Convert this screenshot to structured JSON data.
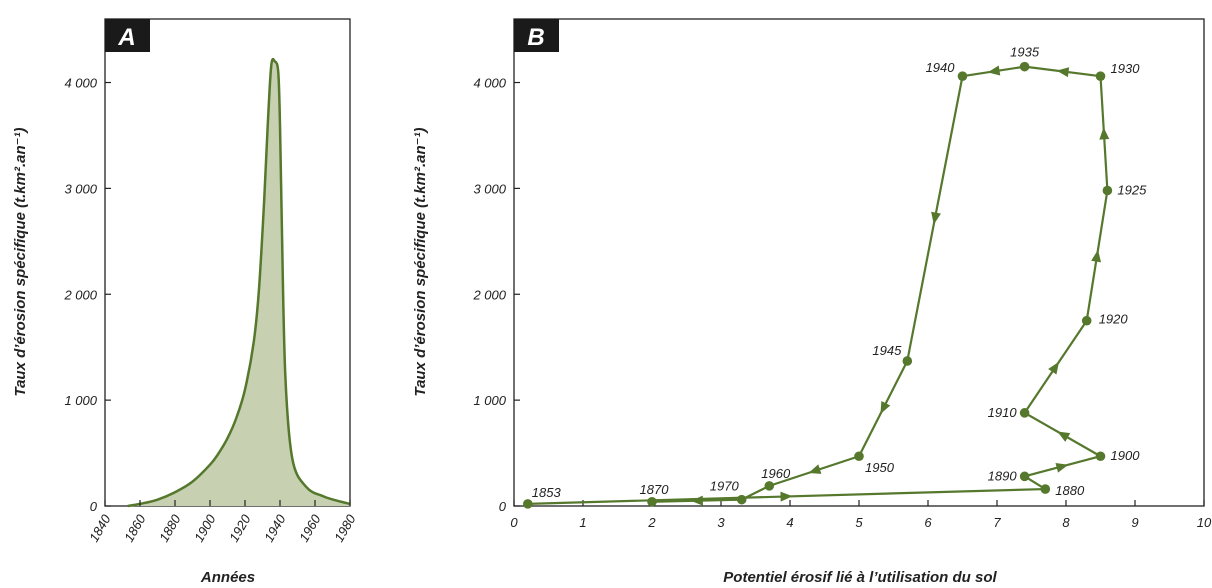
{
  "colors": {
    "line": "#55782d",
    "fill": "#c7d0b1",
    "axis": "#222222",
    "badge": "#1a1a1a"
  },
  "chart_data": [
    {
      "panel": "A",
      "type": "area",
      "title": "",
      "xlabel": "Années",
      "ylabel": "Taux d’érosion spécifique (t.km².an⁻¹)",
      "xlim": [
        1840,
        1980
      ],
      "ylim": [
        0,
        4600
      ],
      "x_ticks": [
        1840,
        1860,
        1880,
        1900,
        1920,
        1940,
        1960,
        1980
      ],
      "x_tick_labels": [
        "1840",
        "1860",
        "1880",
        "1900",
        "1920",
        "1940",
        "1960",
        "1980"
      ],
      "y_ticks": [
        0,
        1000,
        2000,
        3000,
        4000
      ],
      "y_tick_labels": [
        "0",
        "1 000",
        "2 000",
        "3 000",
        "4 000"
      ],
      "grid": false,
      "x": [
        1853,
        1860,
        1870,
        1880,
        1890,
        1900,
        1905,
        1910,
        1915,
        1920,
        1925,
        1928,
        1931,
        1933,
        1935,
        1937,
        1939,
        1940,
        1941,
        1943,
        1947,
        1955,
        1965,
        1975,
        1980
      ],
      "y": [
        0,
        20,
        60,
        130,
        230,
        390,
        500,
        640,
        830,
        1100,
        1550,
        2050,
        2900,
        3600,
        4160,
        4200,
        4100,
        3600,
        2700,
        1250,
        450,
        180,
        90,
        40,
        20
      ]
    },
    {
      "panel": "B",
      "type": "line",
      "title": "",
      "xlabel": "Potentiel érosif lié à l’utilisation du sol",
      "ylabel": "Taux d’érosion spécifique (t.km².an⁻¹)",
      "xlim": [
        0,
        10
      ],
      "ylim": [
        0,
        4600
      ],
      "x_ticks": [
        0,
        1,
        2,
        3,
        4,
        5,
        6,
        7,
        8,
        9,
        10
      ],
      "x_tick_labels": [
        "0",
        "1",
        "2",
        "3",
        "4",
        "5",
        "6",
        "7",
        "8",
        "9",
        "10"
      ],
      "y_ticks": [
        0,
        1000,
        2000,
        3000,
        4000
      ],
      "y_tick_labels": [
        "0",
        "1 000",
        "2 000",
        "3 000",
        "4 000"
      ],
      "grid": false,
      "points": [
        {
          "label": "1853",
          "x": 0.2,
          "y": 20
        },
        {
          "label": "1880",
          "x": 7.7,
          "y": 160
        },
        {
          "label": "1890",
          "x": 7.4,
          "y": 280
        },
        {
          "label": "1900",
          "x": 8.5,
          "y": 470
        },
        {
          "label": "1910",
          "x": 7.4,
          "y": 880
        },
        {
          "label": "1920",
          "x": 8.3,
          "y": 1750
        },
        {
          "label": "1925",
          "x": 8.6,
          "y": 2980
        },
        {
          "label": "1930",
          "x": 8.5,
          "y": 4060
        },
        {
          "label": "1935",
          "x": 7.4,
          "y": 4150
        },
        {
          "label": "1940",
          "x": 6.5,
          "y": 4060
        },
        {
          "label": "1945",
          "x": 5.7,
          "y": 1370
        },
        {
          "label": "1950",
          "x": 5.0,
          "y": 470
        },
        {
          "label": "1960",
          "x": 3.7,
          "y": 190
        },
        {
          "label": "1970",
          "x": 3.3,
          "y": 60
        },
        {
          "label": "1870",
          "x": 2.0,
          "y": 40
        }
      ]
    }
  ],
  "panels": {
    "a_letter": "A",
    "b_letter": "B"
  }
}
